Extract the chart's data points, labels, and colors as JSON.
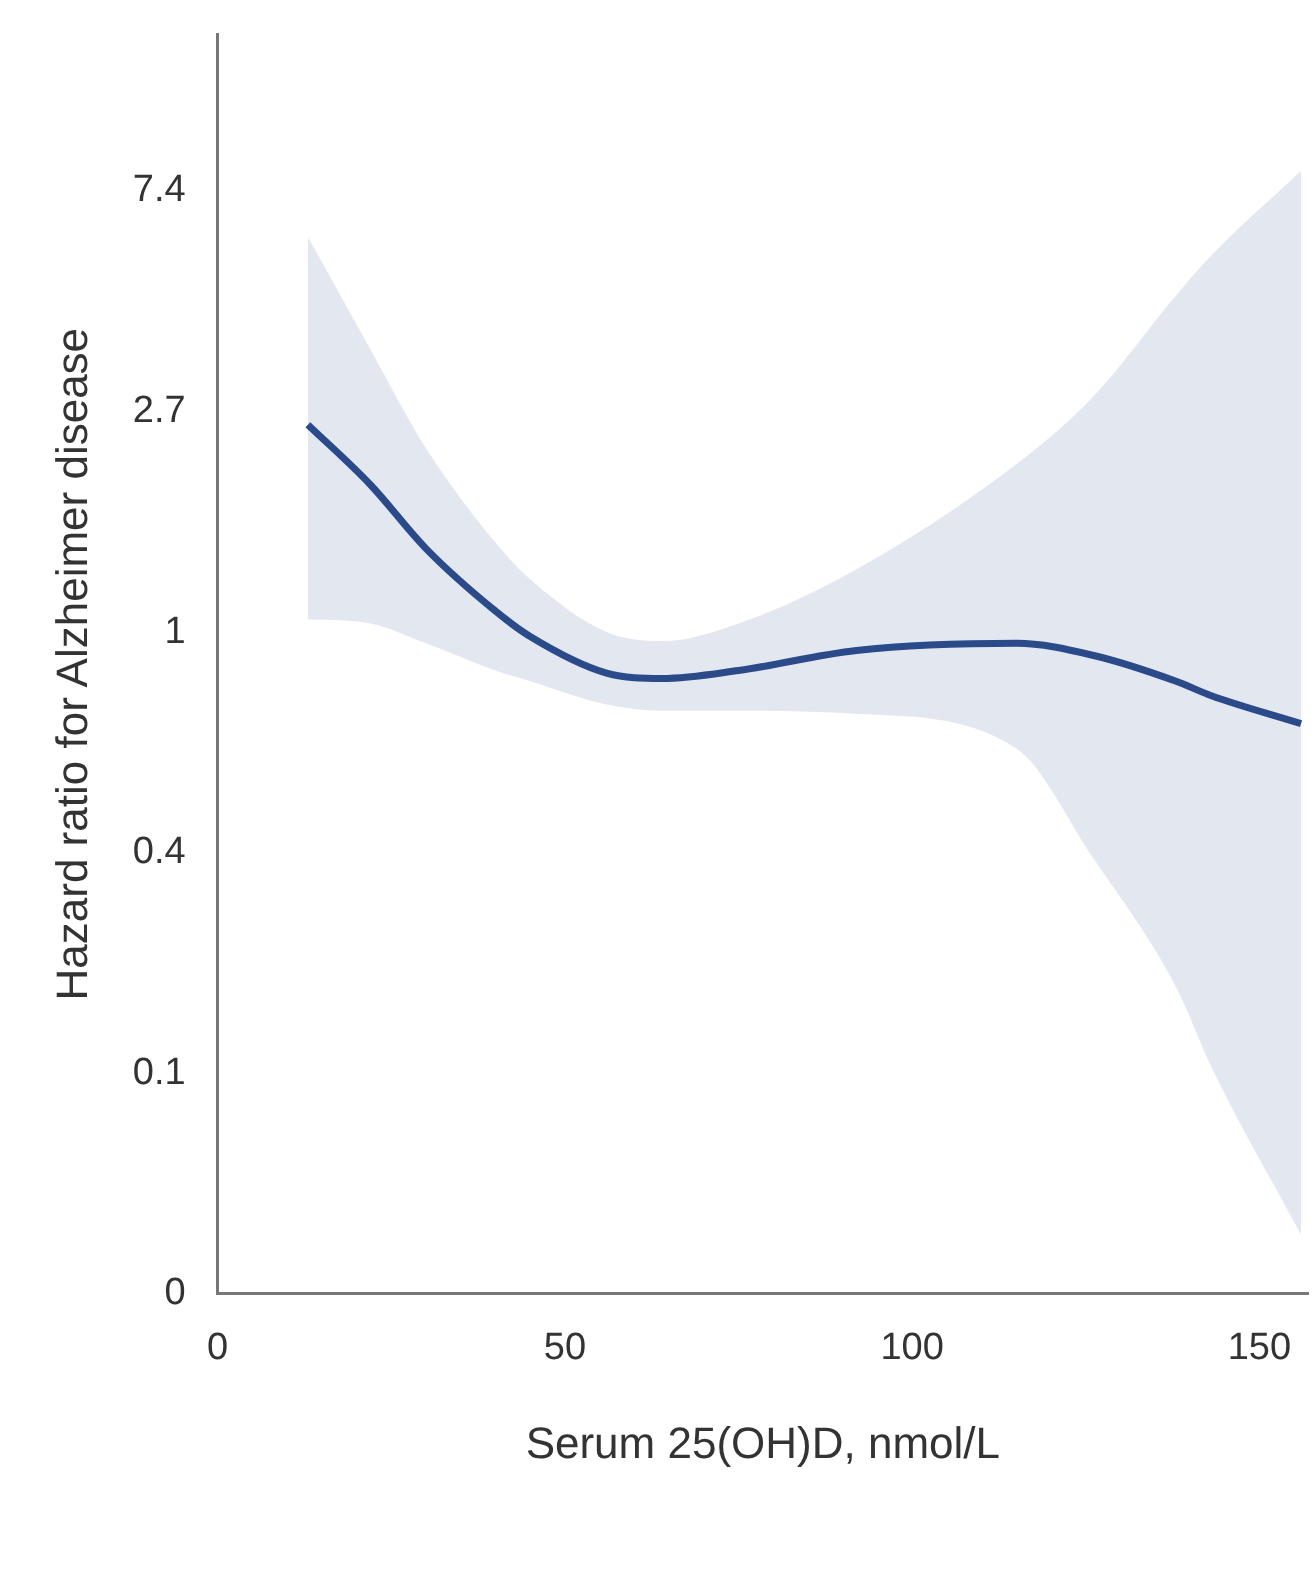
{
  "chart_data": {
    "type": "line",
    "xlabel": "Serum 25(OH)D, nmol/L",
    "ylabel": "Hazard ratio for Alzheimer disease",
    "x": [
      13,
      22,
      30,
      40,
      45,
      56,
      64,
      75,
      92,
      115,
      126,
      138,
      143,
      156
    ],
    "series": [
      {
        "color": "#2b4a8a",
        "values": [
          2.56,
          1.95,
          1.46,
          1.1,
          0.98,
          0.83,
          0.81,
          0.84,
          0.92,
          0.95,
          0.9,
          0.8,
          0.75,
          0.66
        ],
        "upper": [
          6.0,
          3.6,
          2.3,
          1.5,
          1.27,
          1.0,
          0.96,
          1.04,
          1.33,
          2.14,
          2.9,
          4.6,
          5.5,
          8.1
        ],
        "lower": [
          1.06,
          1.04,
          0.95,
          0.84,
          0.8,
          0.72,
          0.7,
          0.7,
          0.69,
          0.59,
          0.36,
          0.2,
          0.14,
          0.065
        ]
      }
    ],
    "log": "y",
    "xlim": [
      0,
      157
    ],
    "xticks": [
      0,
      50,
      100,
      150
    ],
    "ylim": [
      0.0498,
      15
    ],
    "yticks": [
      {
        "value": 0.0498,
        "label": "0"
      },
      {
        "value": 0.1353,
        "label": "0.1"
      },
      {
        "value": 0.3679,
        "label": "0.4"
      },
      1,
      {
        "value": 2.718,
        "label": "2.7"
      },
      {
        "value": 7.389,
        "label": "7.4"
      }
    ],
    "grid": false,
    "legend": false,
    "marker": "none",
    "line_style": "solid"
  }
}
